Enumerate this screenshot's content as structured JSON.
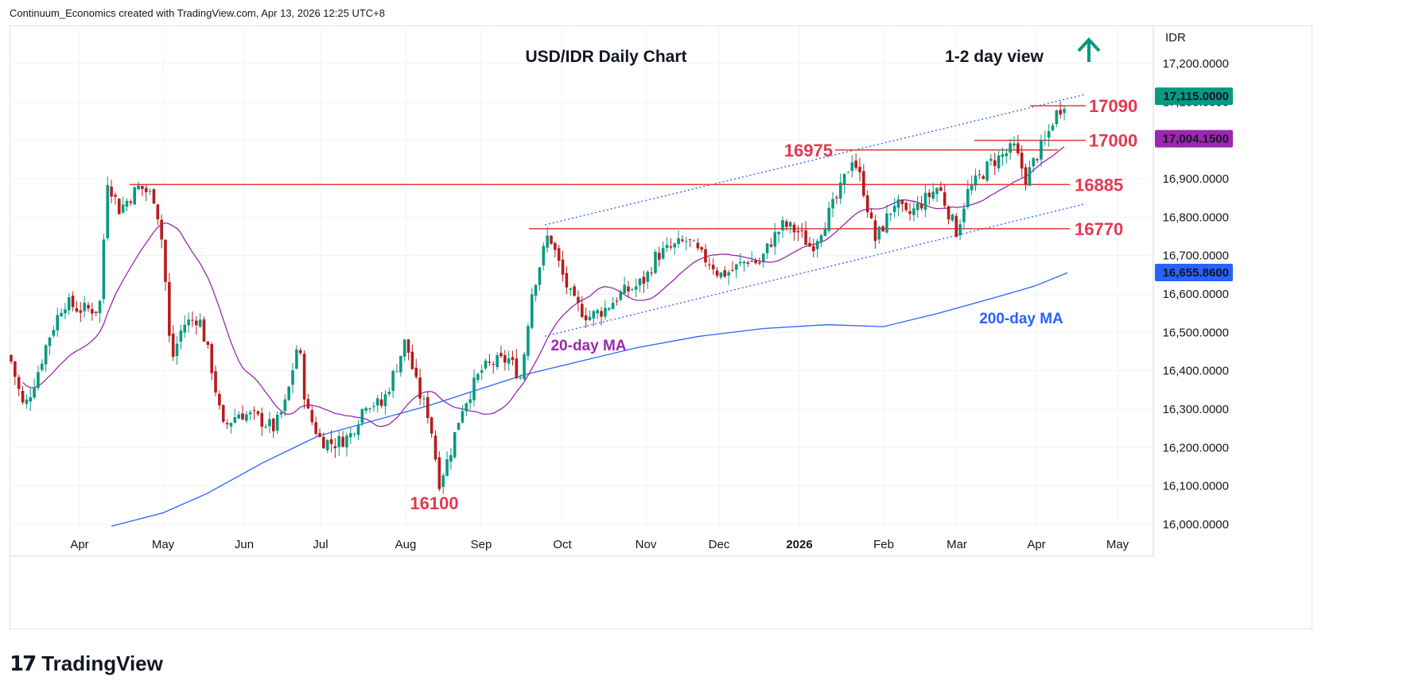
{
  "header": {
    "attribution": "Continuum_Economics created with TradingView.com, Apr 13, 2026 12:25 UTC+8"
  },
  "footer": {
    "logo_mark": "17",
    "logo_name": "TradingView"
  },
  "chart_data": {
    "type": "candlestick",
    "title": "USD/IDR Daily Chart",
    "view_label": "1-2 day view",
    "view_direction": "up",
    "currency_label": "IDR",
    "y_ticks": [
      "17,200.0000",
      "17,100.0000",
      "17,000.0000",
      "16,900.0000",
      "16,800.0000",
      "16,700.0000",
      "16,600.0000",
      "16,500.0000",
      "16,400.0000",
      "16,300.0000",
      "16,200.0000",
      "16,100.0000",
      "16,000.0000"
    ],
    "y_tick_values": [
      17200,
      17100,
      17000,
      16900,
      16800,
      16700,
      16600,
      16500,
      16400,
      16300,
      16200,
      16100,
      16000
    ],
    "ylim": [
      16000,
      17260
    ],
    "x_labels": [
      "Apr",
      "May",
      "Jun",
      "Jul",
      "Aug",
      "Sep",
      "Oct",
      "Nov",
      "Dec",
      "2026",
      "Feb",
      "Mar",
      "Apr",
      "May"
    ],
    "price_badges": [
      {
        "label": "17,115.0000",
        "value": 17115,
        "color": "#089981"
      },
      {
        "label": "17,004.1500",
        "value": 17004.15,
        "color": "#9c27b0"
      },
      {
        "label": "16,655.8600",
        "value": 16655.86,
        "color": "#2962ff"
      }
    ],
    "levels": [
      {
        "label": "17090",
        "value": 17090
      },
      {
        "label": "17000",
        "value": 17000
      },
      {
        "label": "16975",
        "value": 16975
      },
      {
        "label": "16885",
        "value": 16885
      },
      {
        "label": "16770",
        "value": 16770
      },
      {
        "label": "16100",
        "value": 16100
      }
    ],
    "annotations": {
      "ma20": "20-day MA",
      "ma200": "200-day MA"
    },
    "colors": {
      "up": "#089981",
      "down": "#b71c1c",
      "level": "#e53935",
      "level_text": "#e53950",
      "ma20": "#9c27b0",
      "ma200": "#2962ff",
      "channel": "#2962ff",
      "arrow": "#089981"
    },
    "ohlc_monthly_closes": {
      "x": [
        "Mar",
        "Apr",
        "May",
        "Jun",
        "Jul",
        "Aug",
        "Sep",
        "Oct",
        "Nov",
        "Dec",
        "Jan",
        "Feb",
        "Mar",
        "Apr"
      ],
      "close": [
        16420,
        16560,
        16420,
        16280,
        16210,
        16300,
        16430,
        16560,
        16660,
        16690,
        16850,
        16760,
        16880,
        17115
      ]
    }
  }
}
